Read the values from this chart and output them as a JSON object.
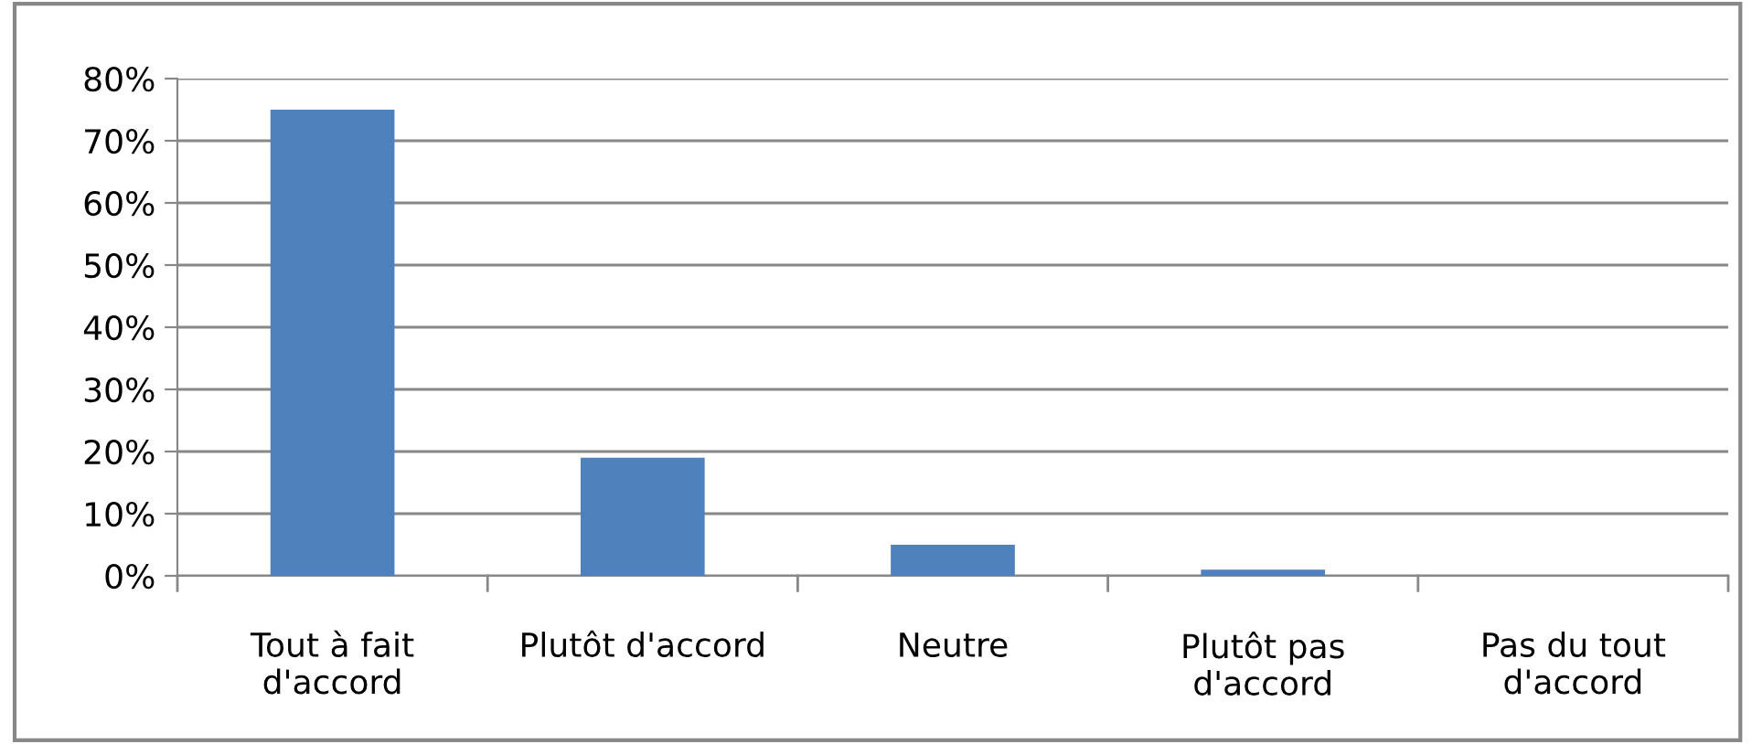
{
  "chart_data": {
    "type": "bar",
    "categories": [
      "Tout à fait\nd'accord",
      "Plutôt d'accord",
      "Neutre",
      "Plutôt pas\nd'accord",
      "Pas du tout\nd'accord"
    ],
    "values": [
      75,
      19,
      5,
      1,
      0
    ],
    "color": "#4f81bd",
    "ylim": [
      0,
      80
    ],
    "yticks": [
      {
        "value": 0,
        "label": "0%"
      },
      {
        "value": 10,
        "label": "10%"
      },
      {
        "value": 20,
        "label": "20%"
      },
      {
        "value": 30,
        "label": "30%"
      },
      {
        "value": 40,
        "label": "40%"
      },
      {
        "value": 50,
        "label": "50%"
      },
      {
        "value": 60,
        "label": "60%"
      },
      {
        "value": 70,
        "label": "70%"
      },
      {
        "value": 80,
        "label": "80%"
      }
    ],
    "grid": "y",
    "legend": false
  }
}
